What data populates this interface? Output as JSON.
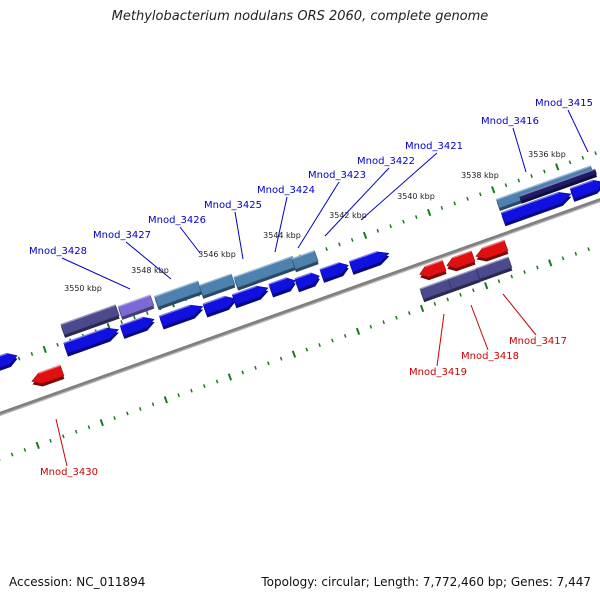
{
  "title": "Methylobacterium nodulans ORS 2060, complete genome",
  "footer": {
    "accession": "Accession: NC_011894",
    "summary": "Topology: circular; Length: 7,772,460 bp; Genes: 7,447"
  },
  "colors": {
    "backbone": "#808080",
    "tick": "#1a7a1a",
    "forward_cds": "#1010e0",
    "reverse_cds": "#e01010",
    "forward_label": "#0000cc",
    "reverse_label": "#cc0000"
  },
  "ticks": {
    "outer": [
      "3536 kbp",
      "3538 kbp",
      "3540 kbp",
      "3542 kbp",
      "3544 kbp",
      "3546 kbp",
      "3548 kbp",
      "3550 kbp"
    ]
  },
  "genes": {
    "forward": [
      "Mnod_3415",
      "Mnod_3416",
      "Mnod_3421",
      "Mnod_3422",
      "Mnod_3423",
      "Mnod_3424",
      "Mnod_3425",
      "Mnod_3426",
      "Mnod_3427",
      "Mnod_3428"
    ],
    "reverse": [
      "Mnod_3417",
      "Mnod_3418",
      "Mnod_3419",
      "Mnod_3430"
    ]
  }
}
